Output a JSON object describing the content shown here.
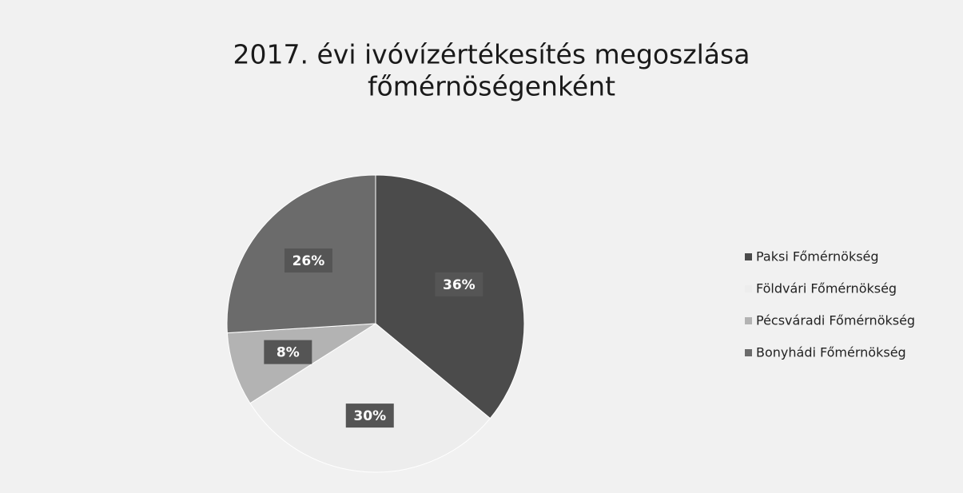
{
  "chart_data": {
    "type": "pie",
    "title": [
      "2017. évi ivóvízértékesítés megoszlása",
      "főmérnöségenként"
    ],
    "categories": [
      "Paksi Főmérnökség",
      "Földvári Főmérnökség",
      "Pécsváradi Főmérnökség",
      "Bonyhádi Főmérnökség"
    ],
    "values": [
      36,
      30,
      8,
      26
    ],
    "value_labels": [
      "36%",
      "30%",
      "8%",
      "26%"
    ],
    "colors": [
      "#4b4b4b",
      "#ededed",
      "#b3b3b3",
      "#6b6b6b"
    ],
    "legend": "right"
  }
}
